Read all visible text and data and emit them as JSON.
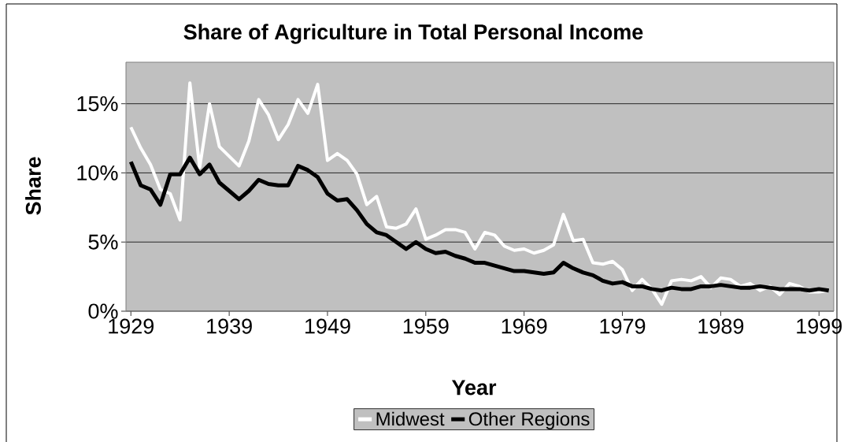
{
  "chart_data": {
    "type": "line",
    "title": "Share of Agriculture in Total Personal Income",
    "xlabel": "Year",
    "ylabel": "Share",
    "x": [
      1929,
      1930,
      1931,
      1932,
      1933,
      1934,
      1935,
      1936,
      1937,
      1938,
      1939,
      1940,
      1941,
      1942,
      1943,
      1944,
      1945,
      1946,
      1947,
      1948,
      1949,
      1950,
      1951,
      1952,
      1953,
      1954,
      1955,
      1956,
      1957,
      1958,
      1959,
      1960,
      1961,
      1962,
      1963,
      1964,
      1965,
      1966,
      1967,
      1968,
      1969,
      1970,
      1971,
      1972,
      1973,
      1974,
      1975,
      1976,
      1977,
      1978,
      1979,
      1980,
      1981,
      1982,
      1983,
      1984,
      1985,
      1986,
      1987,
      1988,
      1989,
      1990,
      1991,
      1992,
      1993,
      1994,
      1995,
      1996,
      1997,
      1998,
      1999,
      2000
    ],
    "series": [
      {
        "name": "Midwest",
        "color": "#ffffff",
        "values": [
          13.3,
          11.8,
          10.6,
          8.8,
          8.5,
          6.6,
          16.5,
          10.4,
          15.0,
          11.9,
          11.2,
          10.5,
          12.3,
          15.3,
          14.2,
          12.4,
          13.5,
          15.3,
          14.3,
          16.4,
          10.9,
          11.4,
          10.9,
          9.9,
          7.7,
          8.3,
          6.1,
          6.0,
          6.3,
          7.4,
          5.2,
          5.5,
          5.9,
          5.9,
          5.7,
          4.5,
          5.7,
          5.5,
          4.7,
          4.4,
          4.5,
          4.2,
          4.4,
          4.8,
          7.0,
          5.1,
          5.2,
          3.5,
          3.4,
          3.6,
          3.0,
          1.5,
          2.3,
          1.6,
          0.5,
          2.2,
          2.3,
          2.2,
          2.5,
          1.7,
          2.4,
          2.3,
          1.8,
          2.0,
          1.5,
          1.8,
          1.2,
          2.0,
          1.8,
          1.4,
          1.4,
          1.5
        ]
      },
      {
        "name": "Other Regions",
        "color": "#000000",
        "values": [
          10.8,
          9.1,
          8.8,
          7.7,
          9.9,
          9.9,
          11.1,
          9.9,
          10.6,
          9.3,
          8.7,
          8.1,
          8.7,
          9.5,
          9.2,
          9.1,
          9.1,
          10.5,
          10.2,
          9.7,
          8.5,
          8.0,
          8.1,
          7.3,
          6.3,
          5.7,
          5.5,
          5.0,
          4.5,
          5.0,
          4.5,
          4.2,
          4.3,
          4.0,
          3.8,
          3.5,
          3.5,
          3.3,
          3.1,
          2.9,
          2.9,
          2.8,
          2.7,
          2.8,
          3.5,
          3.1,
          2.8,
          2.6,
          2.2,
          2.0,
          2.1,
          1.8,
          1.8,
          1.6,
          1.5,
          1.7,
          1.6,
          1.6,
          1.8,
          1.8,
          1.9,
          1.8,
          1.7,
          1.7,
          1.8,
          1.7,
          1.6,
          1.6,
          1.6,
          1.5,
          1.6,
          1.5
        ]
      }
    ],
    "xlim": [
      1928.5,
      2000.5
    ],
    "xticks": [
      1929,
      1939,
      1949,
      1959,
      1969,
      1979,
      1989,
      1999
    ],
    "ylim": [
      0,
      18
    ],
    "yticks": [
      {
        "value": 0,
        "label": "0%"
      },
      {
        "value": 5,
        "label": "5%"
      },
      {
        "value": 10,
        "label": "10%"
      },
      {
        "value": 15,
        "label": "15%"
      }
    ],
    "grid": "y",
    "legend": "bottom",
    "marker": "none",
    "line_style": "solid"
  }
}
